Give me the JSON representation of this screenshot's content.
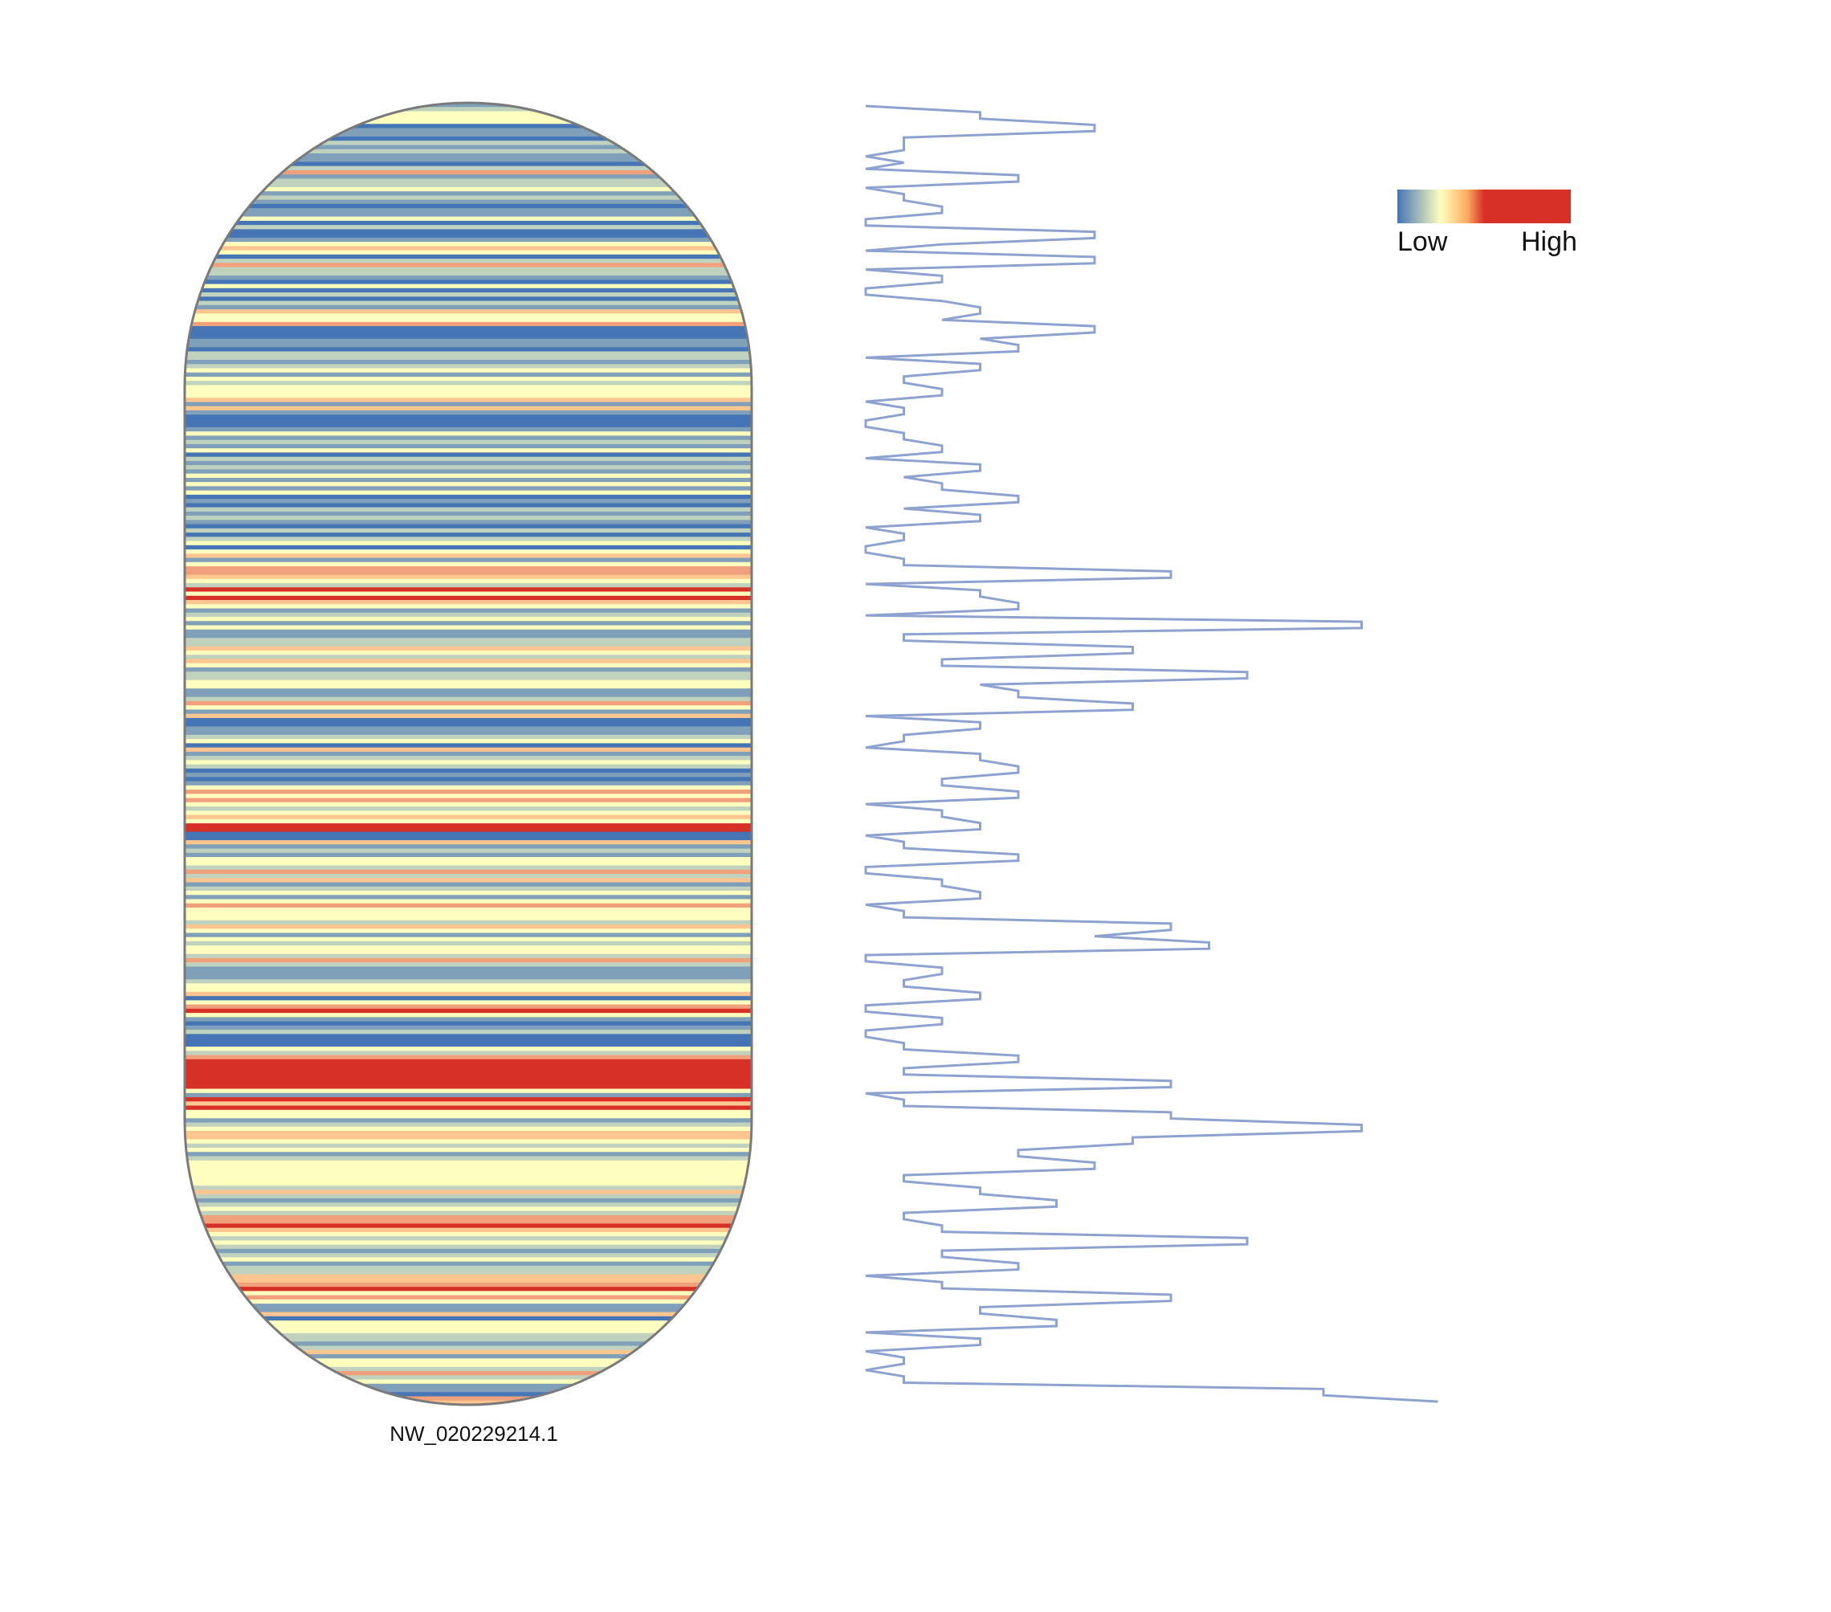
{
  "chart_data": {
    "type": "heatmap",
    "chromosome": "NW_020229214.1",
    "legend": {
      "low_label": "Low",
      "high_label": "High",
      "colors": [
        "#4575b4",
        "#fefebe",
        "#fdae61",
        "#d73027"
      ]
    },
    "density": [
      1,
      2,
      3,
      4,
      3,
      0,
      1,
      1,
      0,
      2,
      1,
      2,
      1,
      1,
      0,
      2,
      6,
      1,
      2,
      2,
      4,
      1,
      2,
      1,
      0,
      1,
      1,
      3,
      0,
      2,
      0,
      0,
      1,
      3,
      5,
      4,
      0,
      2,
      6,
      2,
      2,
      1,
      0,
      3,
      0,
      2,
      0,
      2,
      1,
      5,
      3,
      3,
      6,
      0,
      0,
      0,
      1,
      1,
      0,
      2,
      2,
      1,
      2,
      3,
      1,
      3,
      2,
      3,
      4,
      3,
      5,
      1,
      5,
      1,
      0,
      0,
      0,
      1,
      3,
      1,
      2,
      1,
      3,
      0,
      2,
      1,
      2,
      1,
      4,
      1,
      3,
      1,
      4,
      0,
      1,
      0,
      2,
      1,
      2,
      1,
      0,
      2,
      0,
      2,
      3,
      0,
      3,
      5,
      1,
      4,
      6,
      6,
      5,
      3,
      2,
      7,
      4,
      7,
      5,
      4,
      1,
      2,
      3,
      1,
      4,
      1,
      1,
      2,
      2,
      5,
      3,
      2,
      5,
      3,
      1,
      2,
      2,
      4,
      3,
      1,
      1,
      2,
      6,
      3,
      1,
      5,
      0,
      0,
      1,
      1,
      2,
      4,
      0,
      5,
      1,
      2,
      4,
      2,
      0,
      1,
      0,
      1,
      3,
      6,
      4,
      6,
      3,
      2,
      3,
      5,
      4,
      7,
      7,
      0,
      0,
      5,
      1,
      2,
      1,
      4,
      3,
      2,
      6,
      2,
      5,
      1,
      2,
      4,
      1,
      4,
      6,
      3,
      3,
      4,
      2,
      5,
      3,
      1,
      3,
      2,
      4,
      3,
      2,
      6,
      2,
      1,
      1,
      1,
      2,
      3,
      4,
      5,
      0,
      3,
      6,
      7,
      4,
      1,
      0,
      1,
      2,
      0,
      0,
      0,
      4,
      2,
      6,
      7,
      7,
      7,
      7,
      7,
      7,
      7,
      4,
      1,
      7,
      5,
      7,
      3,
      4,
      1,
      2,
      3,
      5,
      5,
      3,
      2,
      3,
      1,
      2,
      4,
      3,
      3,
      4,
      3,
      3,
      2,
      5,
      2,
      1,
      2,
      4,
      2,
      6,
      6,
      7,
      5,
      4,
      2,
      4,
      2,
      1,
      2,
      3,
      1,
      2,
      2,
      5,
      5,
      6,
      7,
      4,
      6,
      3,
      1,
      1,
      5,
      0,
      3,
      3,
      4,
      2,
      2,
      1,
      2,
      5,
      1,
      3,
      4,
      2,
      6,
      2,
      3,
      1,
      1,
      0,
      6,
      5
    ],
    "density_range": [
      0,
      7
    ],
    "line_values": [
      0,
      3,
      3,
      6,
      6,
      1,
      1,
      1,
      0,
      1,
      0,
      4,
      4,
      0,
      1,
      1,
      2,
      2,
      0,
      0,
      6,
      6,
      2,
      0,
      6,
      6,
      0,
      2,
      2,
      0,
      0,
      2,
      3,
      3,
      2,
      6,
      6,
      3,
      4,
      4,
      0,
      3,
      3,
      1,
      1,
      2,
      2,
      0,
      1,
      1,
      0,
      0,
      1,
      1,
      2,
      2,
      0,
      3,
      3,
      1,
      2,
      2,
      4,
      4,
      1,
      3,
      3,
      0,
      1,
      1,
      0,
      0,
      1,
      1,
      8,
      8,
      0,
      3,
      3,
      4,
      4,
      0,
      13,
      13,
      1,
      1,
      7,
      7,
      2,
      2,
      10,
      10,
      3,
      4,
      4,
      7,
      7,
      0,
      3,
      3,
      1,
      1,
      0,
      3,
      3,
      4,
      4,
      2,
      2,
      4,
      4,
      0,
      2,
      2,
      3,
      3,
      0,
      1,
      1,
      4,
      4,
      0,
      0,
      2,
      2,
      3,
      3,
      0,
      1,
      1,
      8,
      8,
      6,
      9,
      9,
      0,
      0,
      2,
      2,
      1,
      1,
      3,
      3,
      0,
      0,
      2,
      2,
      0,
      0,
      1,
      1,
      4,
      4,
      1,
      1,
      8,
      8,
      0,
      1,
      1,
      8,
      8,
      13,
      13,
      7,
      7,
      4,
      4,
      6,
      6,
      1,
      1,
      3,
      3,
      5,
      5,
      1,
      1,
      2,
      2,
      10,
      10,
      2,
      2,
      4,
      4,
      0,
      2,
      2,
      8,
      8,
      3,
      3,
      5,
      5,
      0,
      3,
      3,
      0,
      1,
      1,
      0,
      1,
      1,
      12,
      12,
      15
    ]
  }
}
